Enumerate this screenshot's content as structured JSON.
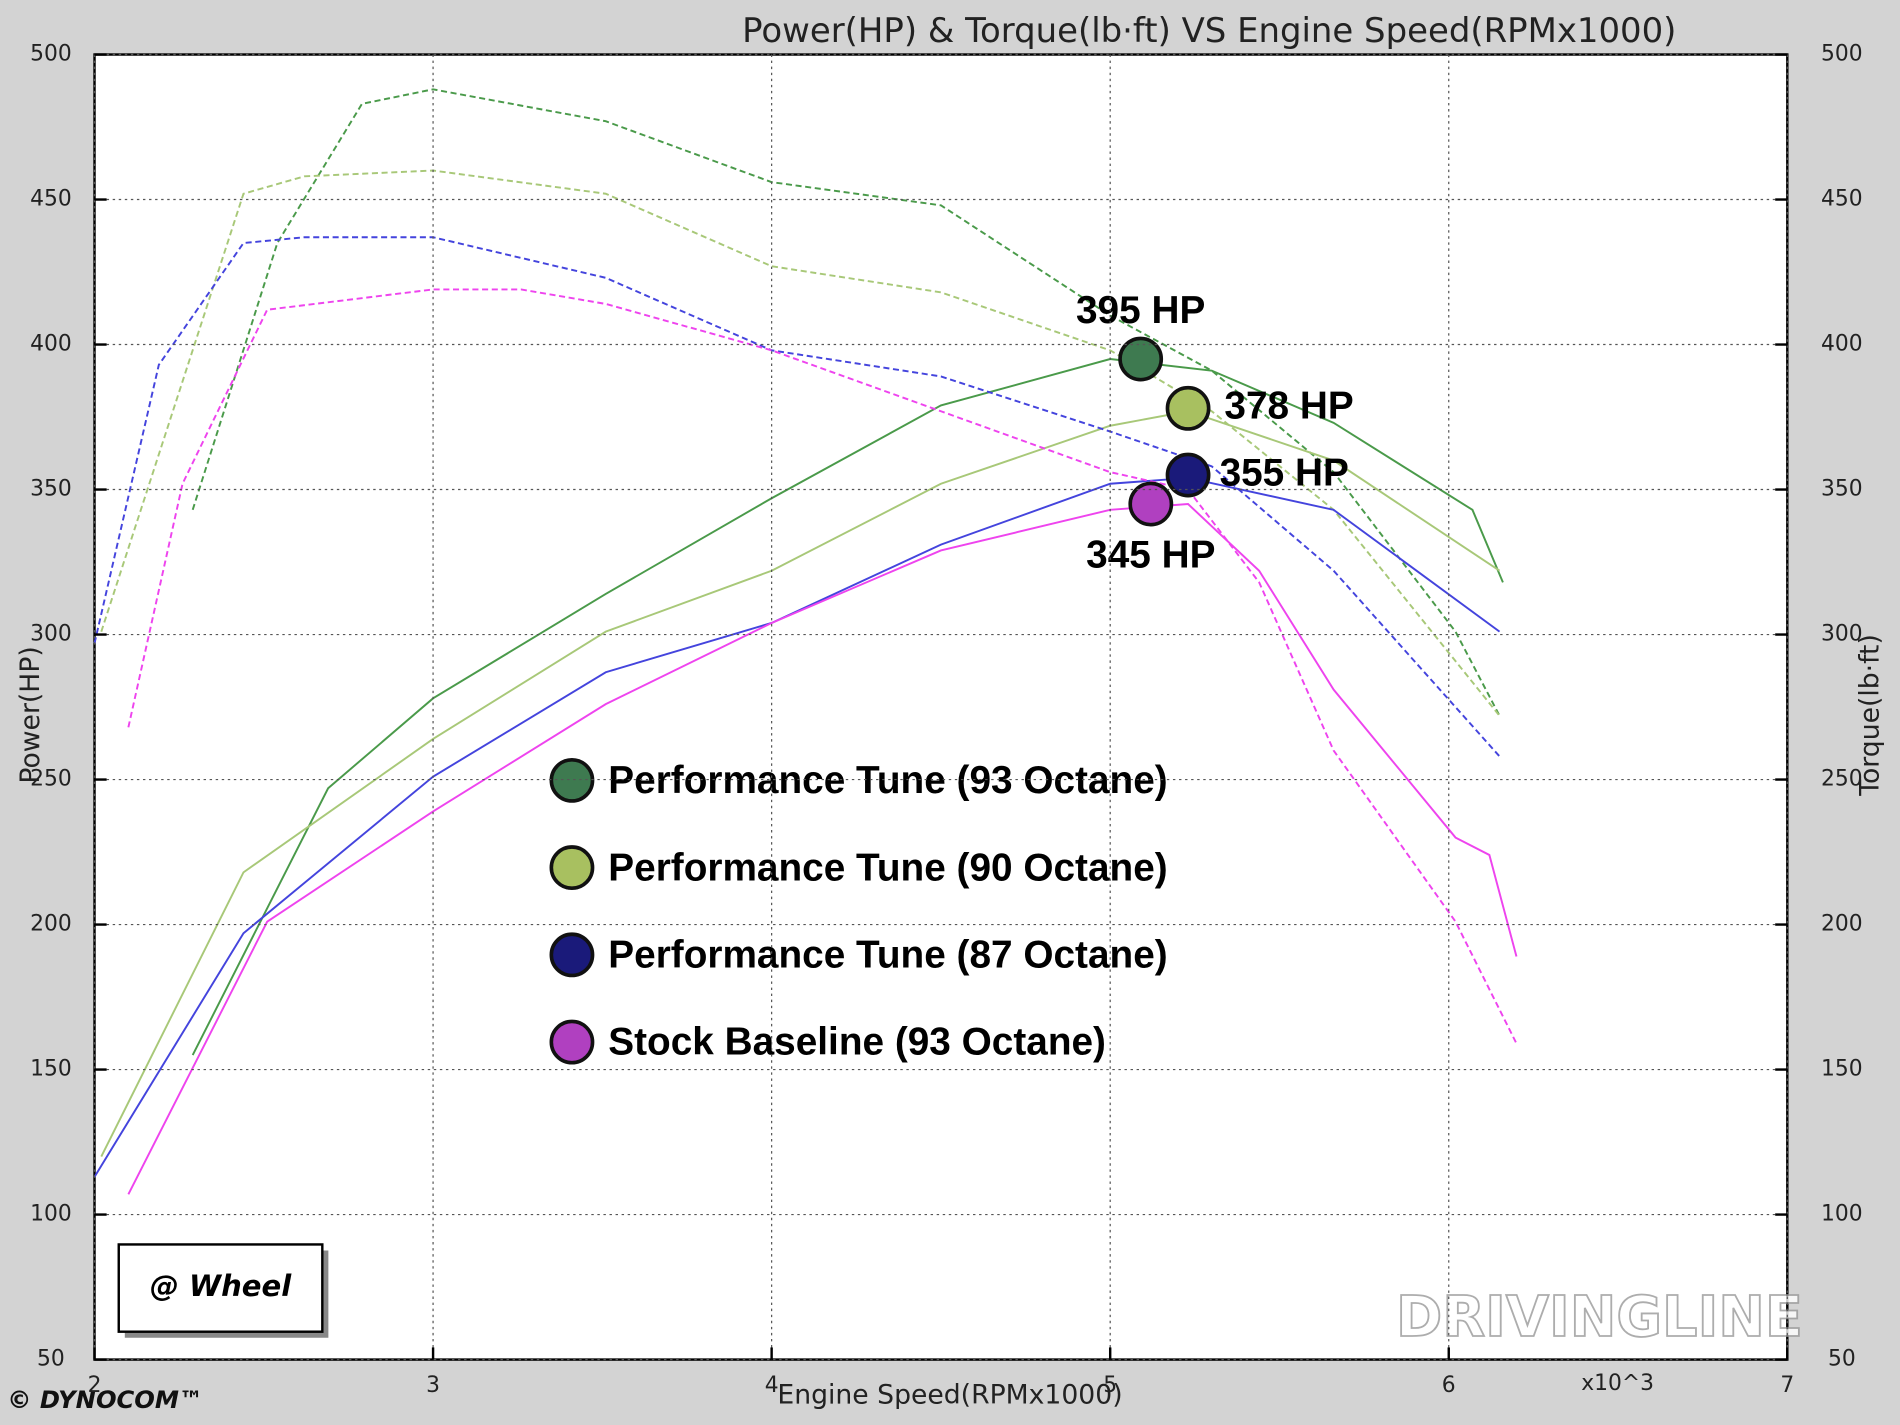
{
  "chart_data": {
    "type": "line",
    "title": "Power(HP) & Torque(lb·ft) VS Engine Speed(RPMx1000)",
    "x_label": "Engine Speed(RPMx1000)",
    "x_multiplier": "x10^3",
    "y_label": "Power(HP)",
    "y2_label": "Torque(lb·ft)",
    "badge": "@ Wheel",
    "brand": "© DYNOCOM™",
    "watermark": "DRIVINGLINE",
    "xlim": [
      2,
      7
    ],
    "xticks": [
      2,
      3,
      4,
      5,
      6,
      7
    ],
    "ylim": [
      50,
      500
    ],
    "yticks": [
      50,
      100,
      150,
      200,
      250,
      300,
      350,
      400,
      450,
      500
    ],
    "y2lim": [
      50,
      500
    ],
    "y2ticks": [
      50,
      100,
      150,
      200,
      250,
      300,
      350,
      400,
      450,
      500
    ],
    "grid": true,
    "series": [
      {
        "name": "Performance Tune (93 Octane)",
        "color": "#4a9a4a",
        "marker_color": "#3e7a50",
        "x": [
          2.29,
          2.69,
          3.0,
          3.51,
          4.0,
          4.5,
          5.0,
          5.3,
          5.66,
          6.07,
          6.16
        ],
        "values": [
          155,
          247,
          278,
          314,
          347,
          379,
          395,
          391,
          373,
          343,
          318
        ],
        "torque_x": [
          2.29,
          2.54,
          2.79,
          3.0,
          3.51,
          4.0,
          4.5,
          5.0,
          5.3,
          5.66,
          6.02,
          6.15
        ],
        "torque_values": [
          343,
          435,
          483,
          488,
          477,
          456,
          448,
          410,
          391,
          356,
          301,
          272
        ]
      },
      {
        "name": "Performance Tune (90 Octane)",
        "color": "#a8c878",
        "marker_color": "#a8c060",
        "x": [
          2.02,
          2.44,
          3.0,
          3.51,
          4.0,
          4.5,
          5.0,
          5.23,
          5.66,
          6.15
        ],
        "values": [
          120,
          218,
          264,
          301,
          322,
          352,
          372,
          377,
          360,
          322
        ],
        "torque_x": [
          2.02,
          2.44,
          2.62,
          3.0,
          3.51,
          4.0,
          4.5,
          5.0,
          5.3,
          5.66,
          6.15
        ],
        "torque_values": [
          301,
          452,
          458,
          460,
          452,
          427,
          418,
          398,
          377,
          343,
          272
        ]
      },
      {
        "name": "Performance Tune (87 Octane)",
        "color": "#4444dd",
        "marker_color": "#1a1a7a",
        "x": [
          2.0,
          2.44,
          3.0,
          3.51,
          4.0,
          4.5,
          5.0,
          5.23,
          5.66,
          6.15
        ],
        "values": [
          113,
          197,
          251,
          287,
          304,
          331,
          352,
          354,
          343,
          301
        ],
        "torque_x": [
          2.0,
          2.19,
          2.44,
          2.62,
          3.0,
          3.51,
          4.0,
          4.5,
          5.0,
          5.3,
          5.66,
          6.15
        ],
        "torque_values": [
          297,
          393,
          435,
          437,
          437,
          423,
          398,
          389,
          370,
          358,
          322,
          258
        ]
      },
      {
        "name": "Stock Baseline (93 Octane)",
        "color": "#ee44ee",
        "marker_color": "#b040c0",
        "x": [
          2.1,
          2.51,
          3.0,
          3.51,
          4.0,
          4.5,
          5.0,
          5.23,
          5.44,
          5.66,
          6.02,
          6.12,
          6.2
        ],
        "values": [
          107,
          201,
          239,
          276,
          304,
          329,
          343,
          345,
          322,
          281,
          230,
          224,
          189
        ],
        "torque_x": [
          2.1,
          2.26,
          2.51,
          3.0,
          3.26,
          3.51,
          4.0,
          4.5,
          5.0,
          5.23,
          5.44,
          5.66,
          6.02,
          6.2
        ],
        "torque_values": [
          268,
          352,
          412,
          419,
          419,
          414,
          398,
          377,
          356,
          350,
          318,
          260,
          201,
          159
        ]
      }
    ],
    "peaks": [
      {
        "label": "395 HP",
        "x": 5.09,
        "value": 395
      },
      {
        "label": "378 HP",
        "x": 5.23,
        "value": 378
      },
      {
        "label": "355 HP",
        "x": 5.23,
        "value": 355
      },
      {
        "label": "345 HP",
        "x": 5.12,
        "value": 345
      }
    ]
  }
}
